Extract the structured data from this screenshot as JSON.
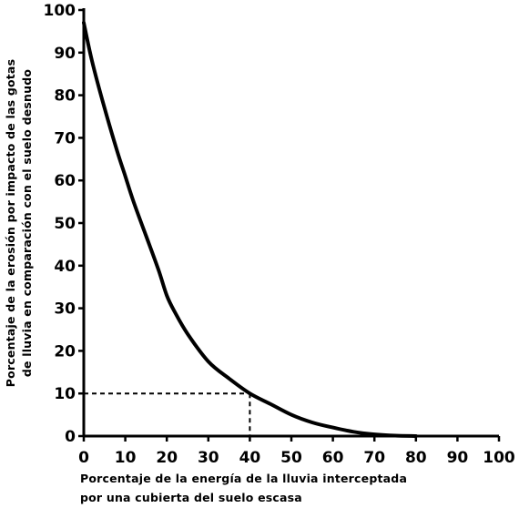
{
  "chart_data": {
    "type": "line",
    "title": "",
    "xlabel_lines": [
      "Porcentaje de la energía de la lluvia interceptada",
      "por una cubierta del suelo escasa"
    ],
    "ylabel_lines": [
      "Porcentaje de la erosión por impacto de las gotas",
      "de lluvia en comparación con el suelo desnudo"
    ],
    "xlim": [
      0,
      100
    ],
    "ylim": [
      0,
      100
    ],
    "x_ticks": [
      "0",
      "10",
      "20",
      "30",
      "40",
      "50",
      "60",
      "70",
      "80",
      "90",
      "100"
    ],
    "y_ticks": [
      "0",
      "10",
      "20",
      "30",
      "40",
      "50",
      "60",
      "70",
      "80",
      "90",
      "100"
    ],
    "grid": false,
    "series": [
      {
        "x": [
          0,
          2,
          5,
          8,
          10,
          12,
          15,
          18,
          20,
          22,
          25,
          30,
          35,
          40,
          45,
          50,
          55,
          60,
          65,
          70,
          75,
          80
        ],
        "y": [
          97,
          88,
          77,
          67,
          61,
          55,
          47,
          39,
          33,
          29,
          24,
          17.5,
          13.5,
          10,
          7.5,
          5,
          3.2,
          2,
          1,
          0.4,
          0.1,
          0
        ]
      }
    ],
    "reference_point": {
      "x": 40,
      "y": 10
    }
  }
}
